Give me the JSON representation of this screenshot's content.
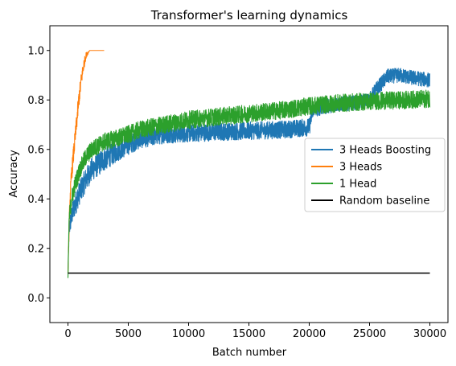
{
  "chart_data": {
    "type": "line",
    "title": "Transformer's learning dynamics",
    "xlabel": "Batch number",
    "ylabel": "Accuracy",
    "xlim": [
      -1500,
      31500
    ],
    "ylim": [
      -0.1,
      1.1
    ],
    "x_ticks": [
      0,
      5000,
      10000,
      15000,
      20000,
      25000,
      30000
    ],
    "y_ticks": [
      0.0,
      0.2,
      0.4,
      0.6,
      0.8,
      1.0
    ],
    "x_tick_labels": [
      "0",
      "5000",
      "10000",
      "15000",
      "20000",
      "25000",
      "30000"
    ],
    "y_tick_labels": [
      "0.0",
      "0.2",
      "0.4",
      "0.6",
      "0.8",
      "1.0"
    ],
    "legend_position": "center-right",
    "series": [
      {
        "name": "3 Heads Boosting",
        "color": "#1f77b4",
        "noisy": true,
        "x": [
          0,
          100,
          300,
          600,
          1000,
          1500,
          2000,
          3000,
          4000,
          5000,
          6000,
          8000,
          10000,
          12000,
          15000,
          18000,
          20000,
          20300,
          22000,
          24000,
          25000,
          25500,
          26500,
          27500,
          28500,
          30000
        ],
        "y": [
          0.1,
          0.28,
          0.33,
          0.38,
          0.43,
          0.48,
          0.52,
          0.56,
          0.59,
          0.62,
          0.64,
          0.66,
          0.665,
          0.67,
          0.675,
          0.68,
          0.69,
          0.76,
          0.78,
          0.79,
          0.8,
          0.84,
          0.895,
          0.9,
          0.89,
          0.88
        ],
        "noise": [
          0.0,
          0.03,
          0.035,
          0.04,
          0.04,
          0.04,
          0.04,
          0.04,
          0.035,
          0.035,
          0.03,
          0.03,
          0.03,
          0.03,
          0.03,
          0.03,
          0.03,
          0.025,
          0.025,
          0.025,
          0.025,
          0.025,
          0.025,
          0.025,
          0.025,
          0.025
        ]
      },
      {
        "name": "3 Heads",
        "color": "#ff7f0e",
        "noisy": true,
        "x": [
          0,
          150,
          300,
          500,
          700,
          900,
          1100,
          1300,
          1500,
          1800,
          2200,
          3000
        ],
        "y": [
          0.1,
          0.38,
          0.5,
          0.6,
          0.7,
          0.8,
          0.88,
          0.94,
          0.98,
          1.0,
          1.0,
          1.0
        ],
        "noise": [
          0.0,
          0.03,
          0.03,
          0.03,
          0.03,
          0.03,
          0.025,
          0.02,
          0.01,
          0.0,
          0.0,
          0.0
        ]
      },
      {
        "name": "1 Head",
        "color": "#2ca02c",
        "noisy": true,
        "x": [
          0,
          100,
          300,
          600,
          1000,
          1500,
          2000,
          3000,
          4000,
          5000,
          6000,
          8000,
          10000,
          12000,
          15000,
          18000,
          20000,
          22000,
          25000,
          28000,
          30000
        ],
        "y": [
          0.08,
          0.32,
          0.4,
          0.46,
          0.52,
          0.57,
          0.6,
          0.63,
          0.645,
          0.66,
          0.68,
          0.7,
          0.72,
          0.73,
          0.745,
          0.76,
          0.775,
          0.785,
          0.795,
          0.8,
          0.805
        ],
        "noise": [
          0.0,
          0.03,
          0.03,
          0.03,
          0.03,
          0.03,
          0.03,
          0.03,
          0.03,
          0.03,
          0.03,
          0.03,
          0.03,
          0.03,
          0.03,
          0.03,
          0.03,
          0.03,
          0.03,
          0.03,
          0.03
        ]
      },
      {
        "name": "Random baseline",
        "color": "#000000",
        "noisy": false,
        "x": [
          0,
          30000
        ],
        "y": [
          0.1,
          0.1
        ]
      }
    ]
  }
}
